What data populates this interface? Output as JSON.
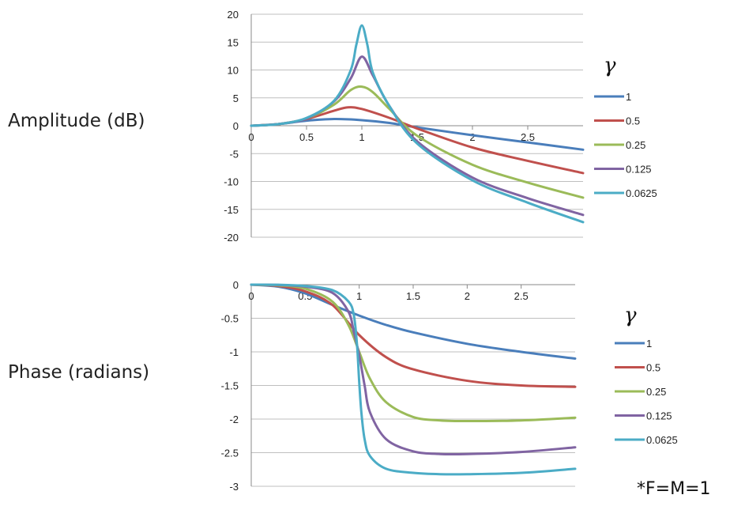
{
  "labels": {
    "amplitude": "Amplitude (dB)",
    "phase": "Phase (radians)",
    "legend_symbol": "γ",
    "note": "*F=M=1"
  },
  "colors": {
    "gamma_1": "#4a7ebb",
    "gamma_0_5": "#c0504d",
    "gamma_0_25": "#9bbb59",
    "gamma_0_125": "#8064a2",
    "gamma_0_0625": "#4bacc6",
    "grid": "#bfbfbf",
    "axis": "#888888"
  },
  "chart_data": [
    {
      "type": "line",
      "title": "",
      "xlabel": "",
      "ylabel": "Amplitude (dB)",
      "xlim": [
        0,
        3
      ],
      "ylim": [
        -20,
        20
      ],
      "x_ticks": [
        "0",
        "0.5",
        "1",
        "1.5",
        "2",
        "2.5"
      ],
      "y_ticks": [
        "20",
        "15",
        "10",
        "5",
        "0",
        "-5",
        "-10",
        "-15",
        "-20"
      ],
      "grid": true,
      "legend": "right",
      "legend_title": "γ",
      "series": [
        {
          "name": "1",
          "color": "#4a7ebb",
          "x": [
            0,
            0.25,
            0.5,
            0.75,
            1,
            1.25,
            1.5,
            2,
            2.5,
            3
          ],
          "y": [
            0,
            0.3,
            0.9,
            1.2,
            1.0,
            0.5,
            -0.3,
            -1.7,
            -3.0,
            -4.3
          ]
        },
        {
          "name": "0.5",
          "color": "#c0504d",
          "x": [
            0,
            0.25,
            0.5,
            0.75,
            0.875,
            1,
            1.25,
            1.5,
            2,
            2.5,
            3
          ],
          "y": [
            0,
            0.3,
            1.2,
            2.7,
            3.3,
            3.0,
            1.4,
            -0.5,
            -3.9,
            -6.3,
            -8.5
          ]
        },
        {
          "name": "0.25",
          "color": "#9bbb59",
          "x": [
            0,
            0.25,
            0.5,
            0.75,
            0.9,
            1,
            1.1,
            1.25,
            1.5,
            2,
            2.5,
            3
          ],
          "y": [
            0,
            0.3,
            1.3,
            3.8,
            6.4,
            7.0,
            6.0,
            3.0,
            -1.8,
            -7.0,
            -10.2,
            -12.9
          ]
        },
        {
          "name": "0.125",
          "color": "#8064a2",
          "x": [
            0,
            0.25,
            0.5,
            0.75,
            0.9,
            1,
            1.1,
            1.25,
            1.5,
            2,
            2.5,
            3
          ],
          "y": [
            0,
            0.3,
            1.3,
            4.4,
            8.5,
            12.4,
            9.0,
            3.5,
            -2.8,
            -9.3,
            -13.0,
            -16.0
          ]
        },
        {
          "name": "0.0625",
          "color": "#4bacc6",
          "x": [
            0,
            0.25,
            0.5,
            0.75,
            0.9,
            0.95,
            1,
            1.05,
            1.1,
            1.25,
            1.5,
            2,
            2.5,
            3
          ],
          "y": [
            0,
            0.3,
            1.4,
            4.5,
            10.0,
            14.5,
            18.0,
            14.5,
            9.5,
            3.5,
            -3.2,
            -9.8,
            -13.8,
            -17.3
          ]
        }
      ]
    },
    {
      "type": "line",
      "title": "",
      "xlabel": "",
      "ylabel": "Phase (radians)",
      "xlim": [
        0,
        3
      ],
      "ylim": [
        -3,
        0
      ],
      "x_ticks": [
        "0",
        "0.5",
        "1",
        "1.5",
        "2",
        "2.5"
      ],
      "y_ticks": [
        "0",
        "-0.5",
        "-1",
        "-1.5",
        "-2",
        "-2.5",
        "-3"
      ],
      "grid": true,
      "legend": "right",
      "legend_title": "γ",
      "series": [
        {
          "name": "1",
          "color": "#4a7ebb",
          "x": [
            0,
            0.25,
            0.5,
            0.75,
            1,
            1.25,
            1.5,
            2,
            2.5,
            3
          ],
          "y": [
            0,
            -0.03,
            -0.13,
            -0.3,
            -0.46,
            -0.6,
            -0.71,
            -0.88,
            -1.0,
            -1.1
          ]
        },
        {
          "name": "0.5",
          "color": "#c0504d",
          "x": [
            0,
            0.25,
            0.5,
            0.75,
            1,
            1.25,
            1.5,
            2,
            2.5,
            3
          ],
          "y": [
            0,
            -0.02,
            -0.1,
            -0.3,
            -0.75,
            -1.08,
            -1.26,
            -1.43,
            -1.5,
            -1.52
          ]
        },
        {
          "name": "0.25",
          "color": "#9bbb59",
          "x": [
            0,
            0.25,
            0.5,
            0.75,
            0.9,
            1,
            1.1,
            1.25,
            1.5,
            1.75,
            2,
            2.5,
            3
          ],
          "y": [
            0,
            -0.01,
            -0.06,
            -0.25,
            -0.6,
            -1.0,
            -1.4,
            -1.75,
            -1.97,
            -2.02,
            -2.03,
            -2.02,
            -1.98
          ]
        },
        {
          "name": "0.125",
          "color": "#8064a2",
          "x": [
            0,
            0.25,
            0.5,
            0.75,
            0.9,
            0.95,
            1,
            1.05,
            1.1,
            1.25,
            1.5,
            1.75,
            2,
            2.5,
            3
          ],
          "y": [
            0,
            -0.005,
            -0.03,
            -0.12,
            -0.4,
            -0.7,
            -1.05,
            -1.5,
            -1.9,
            -2.3,
            -2.48,
            -2.52,
            -2.52,
            -2.49,
            -2.42
          ]
        },
        {
          "name": "0.0625",
          "color": "#4bacc6",
          "x": [
            0,
            0.25,
            0.5,
            0.75,
            0.9,
            0.95,
            0.98,
            1,
            1.02,
            1.05,
            1.1,
            1.25,
            1.5,
            1.75,
            2,
            2.5,
            3
          ],
          "y": [
            0,
            -0.002,
            -0.02,
            -0.08,
            -0.25,
            -0.45,
            -0.9,
            -1.45,
            -1.9,
            -2.3,
            -2.55,
            -2.74,
            -2.8,
            -2.82,
            -2.82,
            -2.8,
            -2.74
          ]
        }
      ]
    }
  ]
}
